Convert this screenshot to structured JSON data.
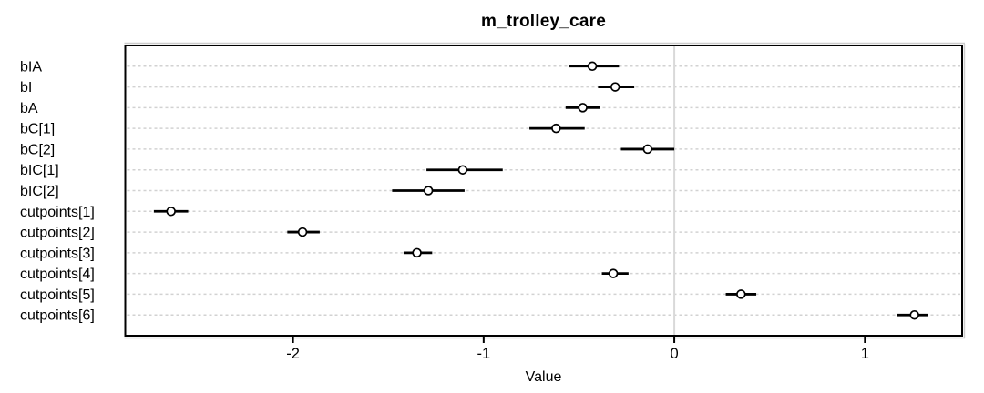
{
  "chart_data": {
    "type": "scatter",
    "subtype": "coefficient-point-interval-forest-plot",
    "title": "m_trolley_care",
    "xlabel": "Value",
    "ylabel": "",
    "xlim": [
      -2.88,
      1.51
    ],
    "xticks": [
      -2,
      -1,
      0,
      1
    ],
    "grid": {
      "horizontal_dashed_per_row": true,
      "vertical_zero_reference_line": true
    },
    "legend": "none",
    "points": [
      {
        "label": "bIA",
        "mean": -0.43,
        "lo": -0.55,
        "hi": -0.29
      },
      {
        "label": "bI",
        "mean": -0.31,
        "lo": -0.4,
        "hi": -0.21
      },
      {
        "label": "bA",
        "mean": -0.48,
        "lo": -0.57,
        "hi": -0.39
      },
      {
        "label": "bC[1]",
        "mean": -0.62,
        "lo": -0.76,
        "hi": -0.47
      },
      {
        "label": "bC[2]",
        "mean": -0.14,
        "lo": -0.28,
        "hi": 0.0
      },
      {
        "label": "bIC[1]",
        "mean": -1.11,
        "lo": -1.3,
        "hi": -0.9
      },
      {
        "label": "bIC[2]",
        "mean": -1.29,
        "lo": -1.48,
        "hi": -1.1
      },
      {
        "label": "cutpoints[1]",
        "mean": -2.64,
        "lo": -2.73,
        "hi": -2.55
      },
      {
        "label": "cutpoints[2]",
        "mean": -1.95,
        "lo": -2.03,
        "hi": -1.86
      },
      {
        "label": "cutpoints[3]",
        "mean": -1.35,
        "lo": -1.42,
        "hi": -1.27
      },
      {
        "label": "cutpoints[4]",
        "mean": -0.32,
        "lo": -0.38,
        "hi": -0.24
      },
      {
        "label": "cutpoints[5]",
        "mean": 0.35,
        "lo": 0.27,
        "hi": 0.43
      },
      {
        "label": "cutpoints[6]",
        "mean": 1.26,
        "lo": 1.17,
        "hi": 1.33
      }
    ],
    "colors": {
      "point_fill": "#ffffff",
      "point_stroke": "#000000",
      "interval": "#000000",
      "grid": "#d2d2d2",
      "zero_line": "#d9d9d9",
      "frame": "#000000",
      "frame_highlight": "#cccccc",
      "text": "#000000",
      "background": "#ffffff"
    }
  }
}
